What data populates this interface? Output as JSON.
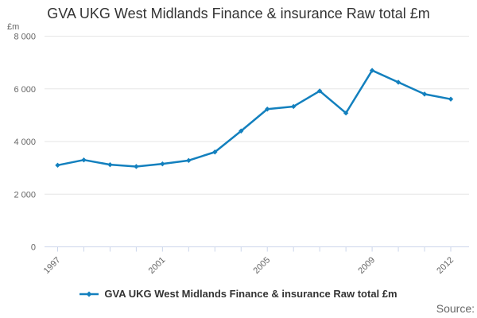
{
  "title": "GVA UKG West Midlands Finance & insurance Raw total £m",
  "y_axis": {
    "unit_label": "£m",
    "tick_labels": [
      "0",
      "2 000",
      "4 000",
      "6 000",
      "8 000"
    ]
  },
  "x_axis": {
    "labeled_ticks": [
      "1997",
      "2001",
      "2005",
      "2009",
      "2012"
    ]
  },
  "legend": {
    "label": "GVA UKG West Midlands Finance & insurance Raw total £m"
  },
  "source": {
    "label": "Source:"
  },
  "colors": {
    "series": "#1380BE",
    "gridline": "#E6E6E6",
    "axis_line": "#CCD6EB",
    "tick_label": "#666666",
    "title_text": "#333333"
  },
  "chart_data": {
    "type": "line",
    "title": "GVA UKG West Midlands Finance & insurance Raw total £m",
    "xlabel": "",
    "ylabel": "£m",
    "x": [
      1997,
      1998,
      1999,
      2000,
      2001,
      2002,
      2003,
      2004,
      2005,
      2006,
      2007,
      2008,
      2009,
      2010,
      2011,
      2012
    ],
    "series": [
      {
        "name": "GVA UKG West Midlands Finance & insurance Raw total £m",
        "values": [
          3100,
          3300,
          3120,
          3050,
          3150,
          3280,
          3600,
          4400,
          5230,
          5330,
          5920,
          5080,
          6700,
          6250,
          5800,
          5610
        ]
      }
    ],
    "ylim": [
      0,
      8000
    ],
    "yticks": [
      0,
      2000,
      4000,
      6000,
      8000
    ],
    "ytick_labels": [
      "0",
      "2 000",
      "4 000",
      "6 000",
      "8 000"
    ],
    "xticks_labeled": [
      1997,
      2001,
      2005,
      2009,
      2012
    ],
    "grid": true,
    "marker": "diamond",
    "legend_position": "bottom"
  }
}
